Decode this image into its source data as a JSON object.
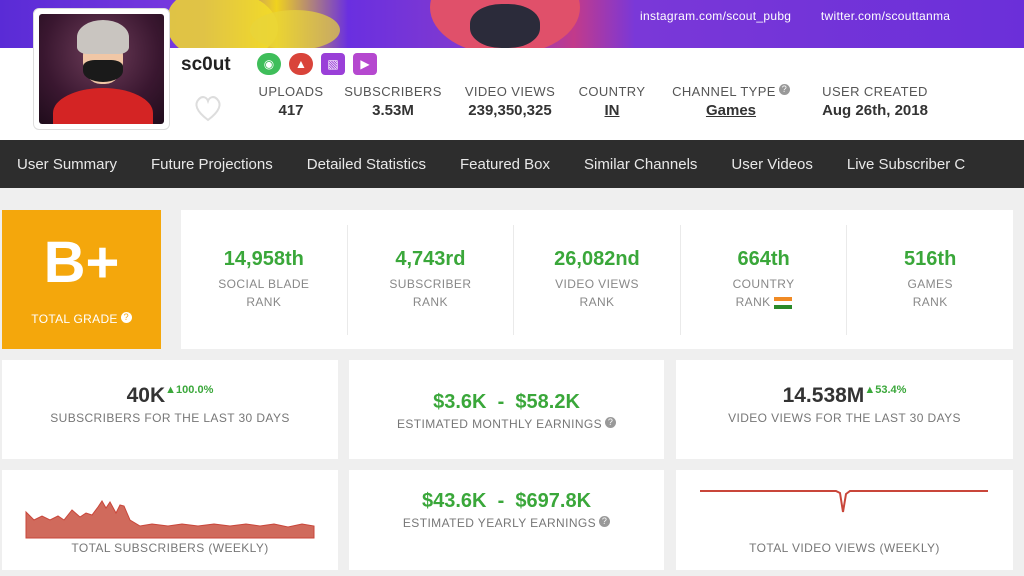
{
  "banner": {
    "instagram": "instagram.com/scout_pubg",
    "twitter": "twitter.com/scouttanma"
  },
  "channel": {
    "name": "sc0ut"
  },
  "stats": [
    {
      "label": "UPLOADS",
      "value": "417"
    },
    {
      "label": "SUBSCRIBERS",
      "value": "3.53M"
    },
    {
      "label": "VIDEO VIEWS",
      "value": "239,350,325"
    },
    {
      "label": "COUNTRY",
      "value": "IN"
    },
    {
      "label": "CHANNEL TYPE",
      "value": "Games"
    },
    {
      "label": "USER CREATED",
      "value": "Aug 26th, 2018"
    }
  ],
  "nav": [
    "User Summary",
    "Future Projections",
    "Detailed Statistics",
    "Featured Box",
    "Similar Channels",
    "User Videos",
    "Live Subscriber C"
  ],
  "grade": {
    "value": "B+",
    "label": "TOTAL GRADE"
  },
  "ranks": [
    {
      "value": "14,958th",
      "l1": "SOCIAL BLADE",
      "l2": "RANK"
    },
    {
      "value": "4,743rd",
      "l1": "SUBSCRIBER",
      "l2": "RANK"
    },
    {
      "value": "26,082nd",
      "l1": "VIDEO VIEWS",
      "l2": "RANK"
    },
    {
      "value": "664th",
      "l1": "COUNTRY",
      "l2": "RANK"
    },
    {
      "value": "516th",
      "l1": "GAMES",
      "l2": "RANK"
    }
  ],
  "subs30": {
    "value": "40K",
    "change": "100.0%",
    "label": "SUBSCRIBERS FOR THE LAST 30 DAYS"
  },
  "monthly": {
    "low": "$3.6K",
    "sep": "-",
    "high": "$58.2K",
    "label": "ESTIMATED MONTHLY EARNINGS"
  },
  "views30": {
    "value": "14.538M",
    "change": "53.4%",
    "label": "VIDEO VIEWS FOR THE LAST 30 DAYS"
  },
  "subsChart": {
    "label": "TOTAL SUBSCRIBERS (WEEKLY)"
  },
  "yearly": {
    "low": "$43.6K",
    "sep": "-",
    "high": "$697.8K",
    "label": "ESTIMATED YEARLY EARNINGS"
  },
  "viewsChart": {
    "label": "TOTAL VIDEO VIEWS (WEEKLY)"
  },
  "colors": {
    "accent_green": "#3aa73a",
    "grade_orange": "#f4a70c",
    "nav_bg": "#2d2d2d",
    "chart_red": "#c9463a"
  }
}
